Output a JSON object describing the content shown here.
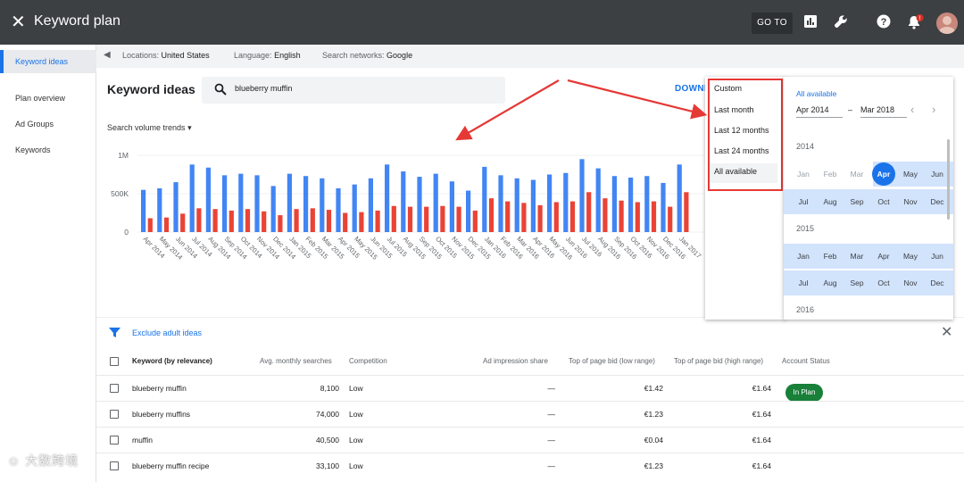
{
  "topbar": {
    "title": "Keyword plan",
    "goto_label": "GO TO",
    "icons": [
      "close-icon",
      "reports-icon",
      "tools-icon",
      "help-icon",
      "notifications-icon",
      "avatar"
    ],
    "notification_badge": "!"
  },
  "sidebar": {
    "items": [
      {
        "label": "Keyword ideas",
        "active": true
      },
      {
        "label": "Plan overview",
        "active": false
      },
      {
        "label": "Ad Groups",
        "active": false
      },
      {
        "label": "Keywords",
        "active": false
      }
    ]
  },
  "filters": {
    "location_label": "Locations:",
    "location_value": "United States",
    "language_label": "Language:",
    "language_value": "English",
    "network_label": "Search networks:",
    "network_value": "Google"
  },
  "main": {
    "title": "Keyword ideas",
    "search_value": "blueberry muffin",
    "download_label": "DOWNI",
    "trend_dropdown": "Search volume trends"
  },
  "chart_data": {
    "type": "bar",
    "yticks": [
      "1M",
      "500K",
      "0"
    ],
    "ylim": [
      0,
      1000000
    ],
    "categories": [
      "Apr 2014",
      "May 2014",
      "Jun 2014",
      "Jul 2014",
      "Aug 2014",
      "Sep 2014",
      "Oct 2014",
      "Nov 2014",
      "Dec 2014",
      "Jan 2015",
      "Feb 2015",
      "Mar 2015",
      "Apr 2015",
      "May 2015",
      "Jun 2015",
      "Jul 2015",
      "Aug 2015",
      "Sep 2015",
      "Oct 2015",
      "Nov 2015",
      "Dec 2015",
      "Jan 2016",
      "Feb 2016",
      "Mar 2016",
      "Apr 2016",
      "May 2016",
      "Jun 2016",
      "Jul 2016",
      "Aug 2016",
      "Sep 2016",
      "Oct 2016",
      "Nov 2016",
      "Dec 2016",
      "Jan 2017"
    ],
    "series": [
      {
        "color": "#4285f4",
        "values": [
          550000,
          570000,
          650000,
          880000,
          840000,
          740000,
          760000,
          740000,
          600000,
          760000,
          730000,
          700000,
          570000,
          620000,
          700000,
          880000,
          790000,
          720000,
          760000,
          660000,
          540000,
          850000,
          740000,
          700000,
          680000,
          750000,
          770000,
          950000,
          830000,
          730000,
          710000,
          730000,
          640000,
          880000
        ]
      },
      {
        "color": "#ea4335",
        "values": [
          180000,
          190000,
          240000,
          310000,
          300000,
          280000,
          300000,
          270000,
          220000,
          300000,
          310000,
          290000,
          250000,
          260000,
          280000,
          340000,
          330000,
          330000,
          340000,
          330000,
          280000,
          440000,
          400000,
          380000,
          350000,
          390000,
          400000,
          520000,
          440000,
          410000,
          390000,
          400000,
          330000,
          520000
        ]
      }
    ]
  },
  "date_menu": {
    "items": [
      "Custom",
      "Last month",
      "Last 12 months",
      "Last 24 months",
      "All available"
    ],
    "selected": "All available"
  },
  "calendar": {
    "header_label": "All available",
    "start": "Apr 2014",
    "dash": "–",
    "end": "Mar 2018",
    "years": [
      "2014",
      "2015",
      "2016"
    ],
    "months": [
      "Jan",
      "Feb",
      "Mar",
      "Apr",
      "May",
      "Jun",
      "Jul",
      "Aug",
      "Sep",
      "Oct",
      "Nov",
      "Dec"
    ],
    "selected_month": "Apr"
  },
  "table": {
    "exclude_label": "Exclude adult ideas",
    "headers": [
      "Keyword (by relevance)",
      "Avg. monthly searches",
      "Competition",
      "Ad impression share",
      "Top of page bid (low range)",
      "Top of page bid (high range)",
      "Account Status"
    ],
    "rows": [
      {
        "keyword": "blueberry muffin",
        "searches": "8,100",
        "competition": "Low",
        "share": "—",
        "low": "€1.42",
        "high": "€1.64",
        "status": "In Plan"
      },
      {
        "keyword": "blueberry muffins",
        "searches": "74,000",
        "competition": "Low",
        "share": "—",
        "low": "€1.23",
        "high": "€1.64",
        "status": ""
      },
      {
        "keyword": "muffin",
        "searches": "40,500",
        "competition": "Low",
        "share": "—",
        "low": "€0.04",
        "high": "€1.64",
        "status": ""
      },
      {
        "keyword": "blueberry muffin recipe",
        "searches": "33,100",
        "competition": "Low",
        "share": "—",
        "low": "€1.23",
        "high": "€1.64",
        "status": ""
      }
    ]
  },
  "watermark": "大数跨境"
}
